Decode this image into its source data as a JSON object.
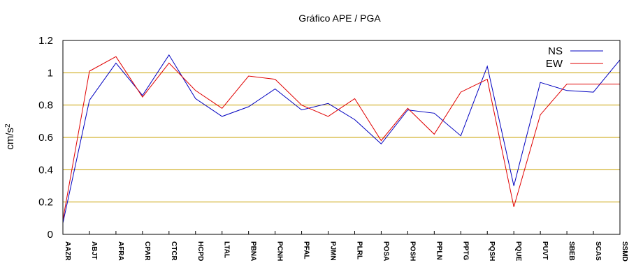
{
  "chart_data": {
    "type": "line",
    "title": "Gráfico  APE / PGA",
    "ylabel": "cm/s",
    "ylabel_superscript": "2",
    "xlabel": "",
    "ylim": [
      0,
      1.2
    ],
    "yticks": [
      0,
      0.2,
      0.4,
      0.6,
      0.8,
      1,
      1.2
    ],
    "ytick_labels": [
      "0",
      "0.2",
      "0.4",
      "0.6",
      "0.8",
      "1",
      "1.2"
    ],
    "grid": "horizontal",
    "legend_position": "top-right",
    "categories": [
      "AAZR",
      "ABJT",
      "AFRA",
      "CPAR",
      "CTCR",
      "HCPD",
      "LTAL",
      "PBNA",
      "PCNH",
      "PFAL",
      "PJMN",
      "PLRL",
      "POSA",
      "POSH",
      "PPLN",
      "PPTG",
      "PQSH",
      "PQUE",
      "PUVT",
      "SBEB",
      "SCAS",
      "SSMD"
    ],
    "series": [
      {
        "name": "NS",
        "color": "#0000c0",
        "values": [
          0.07,
          0.83,
          1.06,
          0.86,
          1.11,
          0.84,
          0.73,
          0.79,
          0.9,
          0.77,
          0.81,
          0.71,
          0.56,
          0.77,
          0.75,
          0.61,
          1.04,
          0.3,
          0.94,
          0.89,
          0.88,
          1.08
        ]
      },
      {
        "name": "EW",
        "color": "#e00000",
        "values": [
          0.09,
          1.01,
          1.1,
          0.85,
          1.06,
          0.89,
          0.78,
          0.98,
          0.96,
          0.8,
          0.73,
          0.84,
          0.58,
          0.78,
          0.62,
          0.88,
          0.96,
          0.17,
          0.74,
          0.93,
          0.93,
          0.93
        ]
      }
    ]
  },
  "colors": {
    "grid": "#c8a000",
    "axis": "#000000",
    "background": "#ffffff"
  }
}
